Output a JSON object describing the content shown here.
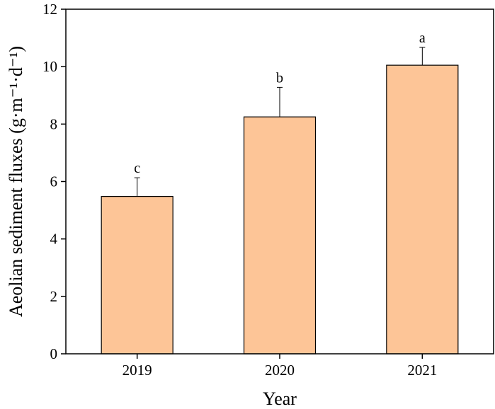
{
  "chart_data": {
    "type": "bar",
    "categories": [
      "2019",
      "2020",
      "2021"
    ],
    "values": [
      5.48,
      8.25,
      10.05
    ],
    "errors": [
      0.65,
      1.03,
      0.62
    ],
    "significance": [
      "c",
      "b",
      "a"
    ],
    "title": "",
    "xlabel": "Year",
    "ylabel": "Aeolian sediment fluxes (g·m⁻¹·d⁻¹)",
    "ylim": [
      0,
      12
    ],
    "yticks": [
      "0",
      "2",
      "4",
      "6",
      "8",
      "10",
      "12"
    ],
    "grid": false,
    "legend": "none",
    "bar_color": "#FDC597",
    "bar_edge_color": "#000000"
  }
}
